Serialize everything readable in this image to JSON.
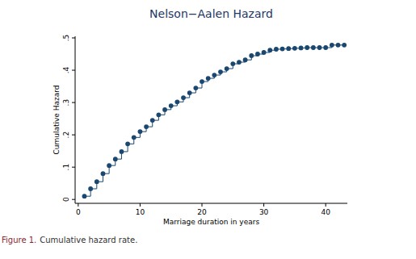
{
  "chart_data": {
    "type": "line",
    "title": "Nelson−Aalen Hazard",
    "x_label": "Marriage duration in years",
    "y_label": "Cumulative Hazard",
    "caption_label": "Figure 1.",
    "caption": "Cumulative hazard rate.",
    "x": [
      1,
      2,
      3,
      4,
      5,
      6,
      7,
      8,
      9,
      10,
      11,
      12,
      13,
      14,
      15,
      16,
      17,
      18,
      19,
      20,
      21,
      22,
      23,
      24,
      25,
      26,
      27,
      28,
      29,
      30,
      31,
      32,
      33,
      34,
      35,
      36,
      37,
      38,
      39,
      40,
      41,
      42,
      43
    ],
    "series": [
      {
        "name": "Cumulative Hazard",
        "color": "#1a476f",
        "marker": "circle",
        "line_style": "step",
        "values": [
          0.01,
          0.033,
          0.055,
          0.08,
          0.105,
          0.125,
          0.148,
          0.172,
          0.192,
          0.21,
          0.225,
          0.245,
          0.262,
          0.278,
          0.29,
          0.302,
          0.315,
          0.33,
          0.345,
          0.365,
          0.375,
          0.385,
          0.395,
          0.405,
          0.42,
          0.425,
          0.432,
          0.445,
          0.45,
          0.455,
          0.462,
          0.465,
          0.466,
          0.467,
          0.468,
          0.469,
          0.47,
          0.47,
          0.47,
          0.47,
          0.478,
          0.478,
          0.478
        ]
      }
    ],
    "xlim": [
      -0.5,
      43.5
    ],
    "xticks": [
      0,
      10,
      20,
      30,
      40
    ],
    "ylim": [
      -0.012,
      0.505
    ],
    "yticks": [
      0,
      {
        "value": 0.1,
        "label": ".1"
      },
      {
        "value": 0.2,
        "label": ".2"
      },
      {
        "value": 0.3,
        "label": ".3"
      },
      {
        "value": 0.4,
        "label": ".4"
      },
      {
        "value": 0.5,
        "label": ".5"
      }
    ],
    "grid": false
  }
}
